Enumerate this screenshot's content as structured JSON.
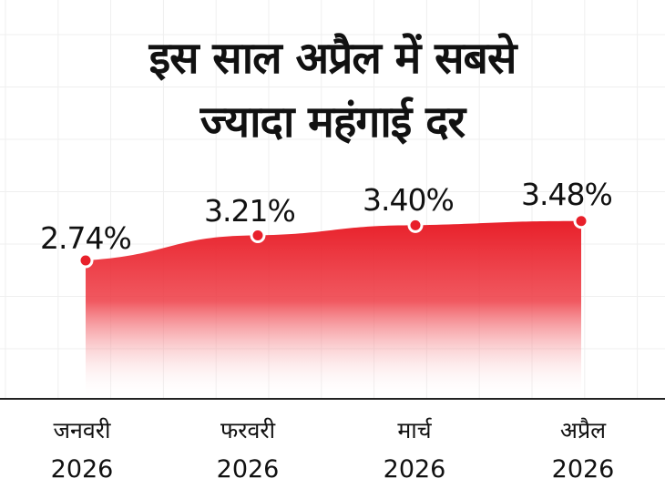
{
  "title_line1": "इस साल अप्रैल में सबसे",
  "title_line2": "ज्यादा महंगाई दर",
  "chart_data": {
    "type": "area",
    "categories": [
      "जनवरी 2026",
      "फरवरी 2026",
      "मार्च 2026",
      "अप्रैल 2026"
    ],
    "months": [
      "जनवरी",
      "फरवरी",
      "मार्च",
      "अप्रैल"
    ],
    "years": [
      "2026",
      "2026",
      "2026",
      "2026"
    ],
    "values": [
      2.74,
      3.21,
      3.4,
      3.48
    ],
    "data_labels": [
      "2.74%",
      "3.21%",
      "3.40%",
      "3.48%"
    ],
    "unit": "%",
    "grid": true,
    "colors": {
      "fill": "#e8202a",
      "marker": "#e8202a",
      "grid": "#efefef",
      "axis": "#222222"
    }
  }
}
